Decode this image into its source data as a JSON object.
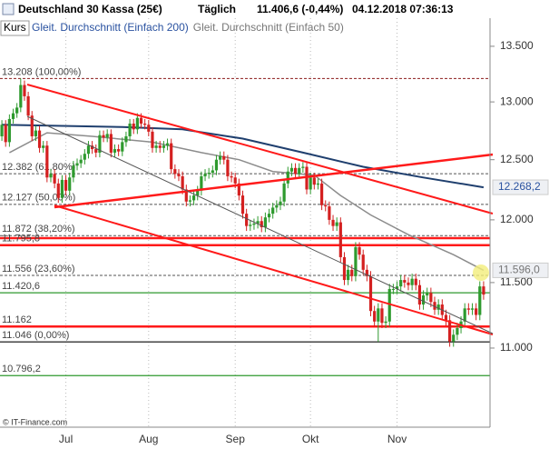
{
  "chart_data": {
    "type": "candlestick",
    "title": "Deutschland 30 Kassa (25€)",
    "interval": "Täglich",
    "quote": "11.406,6 (-0,44%)",
    "timestamp": "04.12.2018 07:36:13",
    "source": "© IT-Finance.com",
    "log_scale": true,
    "ylim": [
      10425,
      13760
    ],
    "yticks": [
      {
        "value": 11000,
        "label": "11.000"
      },
      {
        "value": 11500,
        "label": "11.500"
      },
      {
        "value": 12000,
        "label": "12.000"
      },
      {
        "value": 12500,
        "label": "12.500"
      },
      {
        "value": 13000,
        "label": "13.000"
      },
      {
        "value": 13500,
        "label": "13.500"
      }
    ],
    "categories": [
      null,
      null,
      null,
      null,
      null,
      null,
      null,
      null,
      null,
      null,
      null,
      null,
      null,
      null,
      null,
      null,
      null,
      "Jul",
      null,
      null,
      null,
      null,
      null,
      null,
      null,
      null,
      null,
      null,
      null,
      null,
      null,
      null,
      null,
      null,
      null,
      null,
      null,
      null,
      null,
      "Aug",
      null,
      null,
      null,
      null,
      null,
      null,
      null,
      null,
      null,
      null,
      null,
      null,
      null,
      null,
      null,
      null,
      null,
      null,
      null,
      null,
      null,
      null,
      "Sep",
      null,
      null,
      null,
      null,
      null,
      null,
      null,
      null,
      null,
      null,
      null,
      null,
      null,
      null,
      null,
      null,
      null,
      null,
      null,
      "Okt",
      null,
      null,
      null,
      null,
      null,
      null,
      null,
      null,
      null,
      null,
      null,
      null,
      null,
      null,
      null,
      null,
      null,
      null,
      null,
      null,
      null,
      null,
      "Nov",
      null,
      null,
      null,
      null,
      null,
      null,
      null,
      null,
      null,
      null,
      null,
      null,
      null,
      null,
      null,
      null,
      null,
      null,
      null,
      null,
      null,
      null,
      null
    ],
    "candles": {
      "name": "Kurs",
      "up_color": "#2e9a2e",
      "down_color": "#d42020",
      "open": [
        12700,
        12800,
        12650,
        12850,
        12900,
        12950,
        13150,
        13050,
        12880,
        12700,
        12750,
        12600,
        12620,
        12350,
        12380,
        12300,
        12180,
        12330,
        12240,
        12350,
        12450,
        12470,
        12500,
        12550,
        12620,
        12590,
        12560,
        12710,
        12690,
        12720,
        12560,
        12590,
        12570,
        12650,
        12700,
        12810,
        12760,
        12860,
        12810,
        12800,
        12740,
        12600,
        12620,
        12600,
        12620,
        12640,
        12420,
        12380,
        12360,
        12250,
        12150,
        12160,
        12200,
        12240,
        12360,
        12380,
        12390,
        12410,
        12500,
        12530,
        12500,
        12360,
        12350,
        12300,
        12200,
        12050,
        11950,
        11960,
        11970,
        11990,
        11940,
        12020,
        12050,
        12100,
        12120,
        12150,
        12300,
        12400,
        12430,
        12380,
        12430,
        12440,
        12250,
        12350,
        12290,
        12300,
        12120,
        12110,
        12000,
        11950,
        11980,
        11700,
        11520,
        11600,
        11550,
        11780,
        11720,
        11600,
        11550,
        11280,
        11200,
        11300,
        11190,
        11200,
        11450,
        11450,
        11470,
        11520,
        11500,
        11480,
        11530,
        11480,
        11330,
        11400,
        11420,
        11350,
        11290,
        11330,
        11250,
        11210,
        11050,
        11100,
        11150,
        11200,
        11300,
        11290,
        11300,
        11250,
        11470
      ],
      "high": [
        12840,
        12840,
        12890,
        12940,
        12990,
        13208,
        13190,
        13090,
        12920,
        12790,
        12790,
        12660,
        12660,
        12420,
        12420,
        12340,
        12370,
        12370,
        12390,
        12490,
        12510,
        12540,
        12590,
        12660,
        12660,
        12630,
        12750,
        12750,
        12760,
        12760,
        12630,
        12630,
        12690,
        12740,
        12850,
        12850,
        12900,
        12900,
        12850,
        12840,
        12780,
        12660,
        12660,
        12660,
        12680,
        12680,
        12460,
        12420,
        12400,
        12290,
        12200,
        12240,
        12280,
        12400,
        12420,
        12430,
        12450,
        12540,
        12570,
        12570,
        12540,
        12400,
        12390,
        12340,
        12240,
        12090,
        12000,
        12010,
        12030,
        12030,
        12060,
        12090,
        12140,
        12160,
        12190,
        12340,
        12440,
        12470,
        12470,
        12470,
        12480,
        12480,
        12390,
        12390,
        12340,
        12340,
        12160,
        12150,
        12040,
        12020,
        12020,
        11740,
        11640,
        11640,
        11820,
        11820,
        11760,
        11640,
        11590,
        11320,
        11340,
        11340,
        11240,
        11490,
        11490,
        11510,
        11560,
        11560,
        11540,
        11570,
        11570,
        11520,
        11440,
        11460,
        11460,
        11390,
        11370,
        11370,
        11290,
        11250,
        11140,
        11190,
        11240,
        11340,
        11340,
        11340,
        11340,
        11510,
        11510
      ],
      "low": [
        12660,
        12610,
        12610,
        12810,
        12860,
        12910,
        13010,
        12840,
        12660,
        12660,
        12560,
        12560,
        12310,
        12310,
        12260,
        12140,
        12140,
        12200,
        12200,
        12310,
        12410,
        12430,
        12460,
        12510,
        12550,
        12520,
        12520,
        12650,
        12650,
        12520,
        12520,
        12530,
        12530,
        12610,
        12660,
        12720,
        12720,
        12770,
        12760,
        12700,
        12560,
        12560,
        12560,
        12560,
        12580,
        12380,
        12340,
        12320,
        12210,
        12110,
        12110,
        12120,
        12160,
        12200,
        12320,
        12340,
        12350,
        12370,
        12460,
        12460,
        12320,
        12310,
        12260,
        12160,
        12010,
        11910,
        11910,
        11920,
        11930,
        11900,
        11900,
        11980,
        12010,
        12060,
        12080,
        12110,
        12260,
        12360,
        12340,
        12340,
        12390,
        12210,
        12210,
        12250,
        12250,
        12080,
        12070,
        11960,
        11910,
        11910,
        11660,
        11480,
        11480,
        11510,
        11510,
        11680,
        11560,
        11510,
        11240,
        11160,
        11046,
        11150,
        11150,
        11160,
        11410,
        11410,
        11430,
        11460,
        11440,
        11440,
        11440,
        11290,
        11290,
        11360,
        11310,
        11250,
        11250,
        11210,
        11170,
        11010,
        11010,
        11060,
        11110,
        11160,
        11250,
        11250,
        11210,
        11210,
        11366.6
      ],
      "close": [
        12800,
        12650,
        12850,
        12900,
        12950,
        13150,
        13050,
        12880,
        12700,
        12750,
        12600,
        12620,
        12350,
        12380,
        12300,
        12180,
        12330,
        12240,
        12350,
        12450,
        12470,
        12500,
        12550,
        12620,
        12590,
        12560,
        12710,
        12690,
        12720,
        12560,
        12590,
        12570,
        12650,
        12700,
        12810,
        12760,
        12860,
        12810,
        12800,
        12740,
        12600,
        12620,
        12600,
        12620,
        12640,
        12420,
        12380,
        12360,
        12250,
        12150,
        12160,
        12200,
        12240,
        12360,
        12380,
        12390,
        12410,
        12500,
        12530,
        12500,
        12360,
        12350,
        12300,
        12200,
        12050,
        11950,
        11960,
        11970,
        11990,
        11940,
        12020,
        12050,
        12100,
        12120,
        12150,
        12300,
        12400,
        12430,
        12380,
        12430,
        12440,
        12250,
        12350,
        12290,
        12300,
        12120,
        12110,
        12000,
        11950,
        11980,
        11700,
        11520,
        11600,
        11550,
        11780,
        11720,
        11600,
        11550,
        11280,
        11200,
        11300,
        11190,
        11200,
        11450,
        11450,
        11470,
        11520,
        11500,
        11480,
        11530,
        11480,
        11330,
        11400,
        11420,
        11350,
        11290,
        11330,
        11250,
        11210,
        11050,
        11100,
        11150,
        11200,
        11300,
        11290,
        11300,
        11250,
        11470,
        11406.6
      ]
    },
    "moving_averages": [
      {
        "name": "Gleit. Durchschnitt (Einfach 200)",
        "color": "#1f3f6e",
        "label_color": "#2a52a0",
        "x": [
          0,
          16,
          32,
          48,
          64,
          80,
          96,
          112,
          128
        ],
        "values": [
          12800,
          12790,
          12780,
          12760,
          12680,
          12560,
          12440,
          12350,
          12268.2
        ],
        "value_labels": [
          null,
          null,
          null,
          null,
          null,
          null,
          null,
          null,
          "12.268,2"
        ]
      },
      {
        "name": "Gleit. Durchschnitt (Einfach 50)",
        "color": "#8c8c8c",
        "label_color": "#777777",
        "x": [
          2,
          12,
          24,
          40,
          53,
          63,
          72,
          83,
          90,
          98,
          108,
          120,
          128
        ],
        "values": [
          12560,
          12730,
          12700,
          12650,
          12560,
          12500,
          12400,
          12370,
          12200,
          12040,
          11880,
          11720,
          11596
        ],
        "value_labels": [
          null,
          null,
          null,
          null,
          null,
          null,
          null,
          null,
          null,
          null,
          null,
          null,
          "11.596,0"
        ]
      }
    ],
    "levels": [
      {
        "value": 13208,
        "label": "13.208 (100,00%)",
        "color": "#8b1a1a",
        "style": "dashed"
      },
      {
        "value": 12382,
        "label": "12.382 (61,80%)",
        "color": "#555555",
        "style": "dashed"
      },
      {
        "value": 12127,
        "label": "12.127 (50,00%)",
        "color": "#555555",
        "style": "dashed"
      },
      {
        "value": 11872,
        "label": "11.872 (38,20%)",
        "color": "#555555",
        "style": "dashed"
      },
      {
        "value": 11852,
        "color": "#ff1a1a",
        "style": "thick"
      },
      {
        "value": 11795.8,
        "label": "11.795,8",
        "color": "#ff1a1a",
        "style": "thick"
      },
      {
        "value": 11556,
        "label": "11.556 (23,60%)",
        "color": "#555555",
        "style": "dashed"
      },
      {
        "value": 11420.6,
        "label": "11.420,6",
        "color": "#2e9a2e",
        "style": "solid"
      },
      {
        "value": 11162,
        "label": "11.162",
        "color": "#ff1a1a",
        "style": "thick"
      },
      {
        "value": 11046,
        "label": "11.046 (0,00%)",
        "color": "#333333",
        "style": "solid"
      },
      {
        "value": 10796.2,
        "label": "10.796,2",
        "color": "#2e9a2e",
        "style": "solid"
      }
    ]
  }
}
